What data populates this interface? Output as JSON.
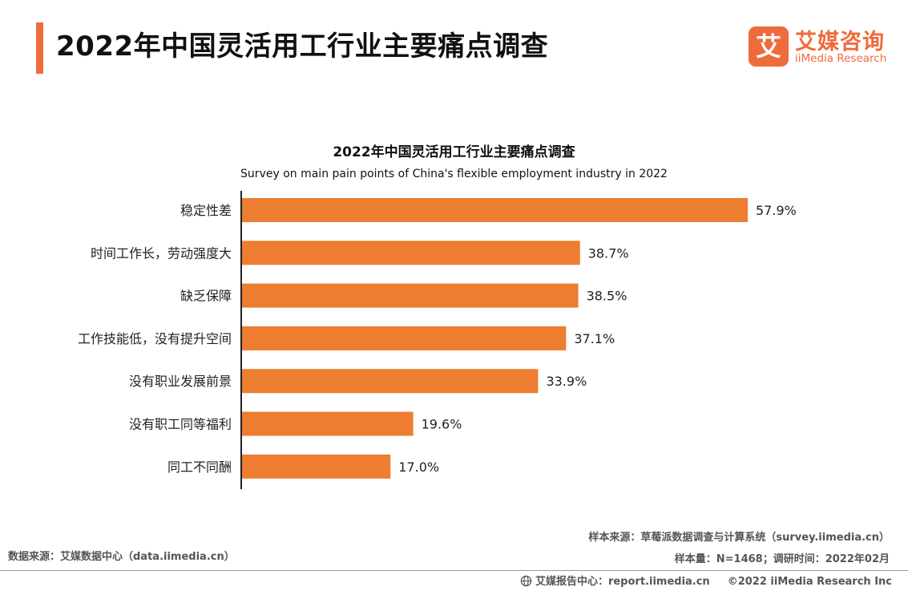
{
  "header": {
    "title": "2022年中国灵活用工行业主要痛点调查"
  },
  "logo": {
    "mark": "艾",
    "name_cn": "艾媒咨询",
    "name_en": "iiMedia Research",
    "brand_color": "#EE6B3B"
  },
  "chart_data": {
    "type": "bar",
    "orientation": "horizontal",
    "title": "2022年中国灵活用工行业主要痛点调查",
    "subtitle": "Survey on main pain points of China's flexible employment industry in 2022",
    "categories": [
      "稳定性差",
      "时间工作长，劳动强度大",
      "缺乏保障",
      "工作技能低，没有提升空间",
      "没有职业发展前景",
      "没有职工同等福利",
      "同工不同酬"
    ],
    "values": [
      57.9,
      38.7,
      38.5,
      37.1,
      33.9,
      19.6,
      17.0
    ],
    "labels": [
      "57.9%",
      "38.7%",
      "38.5%",
      "37.1%",
      "33.9%",
      "19.6%",
      "17.0%"
    ],
    "unit": "%",
    "xlim": [
      0,
      60
    ],
    "bar_color": "#ED7D31",
    "grid": false,
    "xlabel": "",
    "ylabel": ""
  },
  "sources": {
    "data_source": "数据来源：艾媒数据中心（data.iimedia.cn）",
    "sample_source": "样本来源：草莓派数据调查与计算系统（survey.iimedia.cn）",
    "sample_info": "样本量：N=1468；调研时间：2022年02月"
  },
  "footer": {
    "report_center": "艾媒报告中心：report.iimedia.cn",
    "copyright": "©2022  iiMedia Research  Inc"
  }
}
